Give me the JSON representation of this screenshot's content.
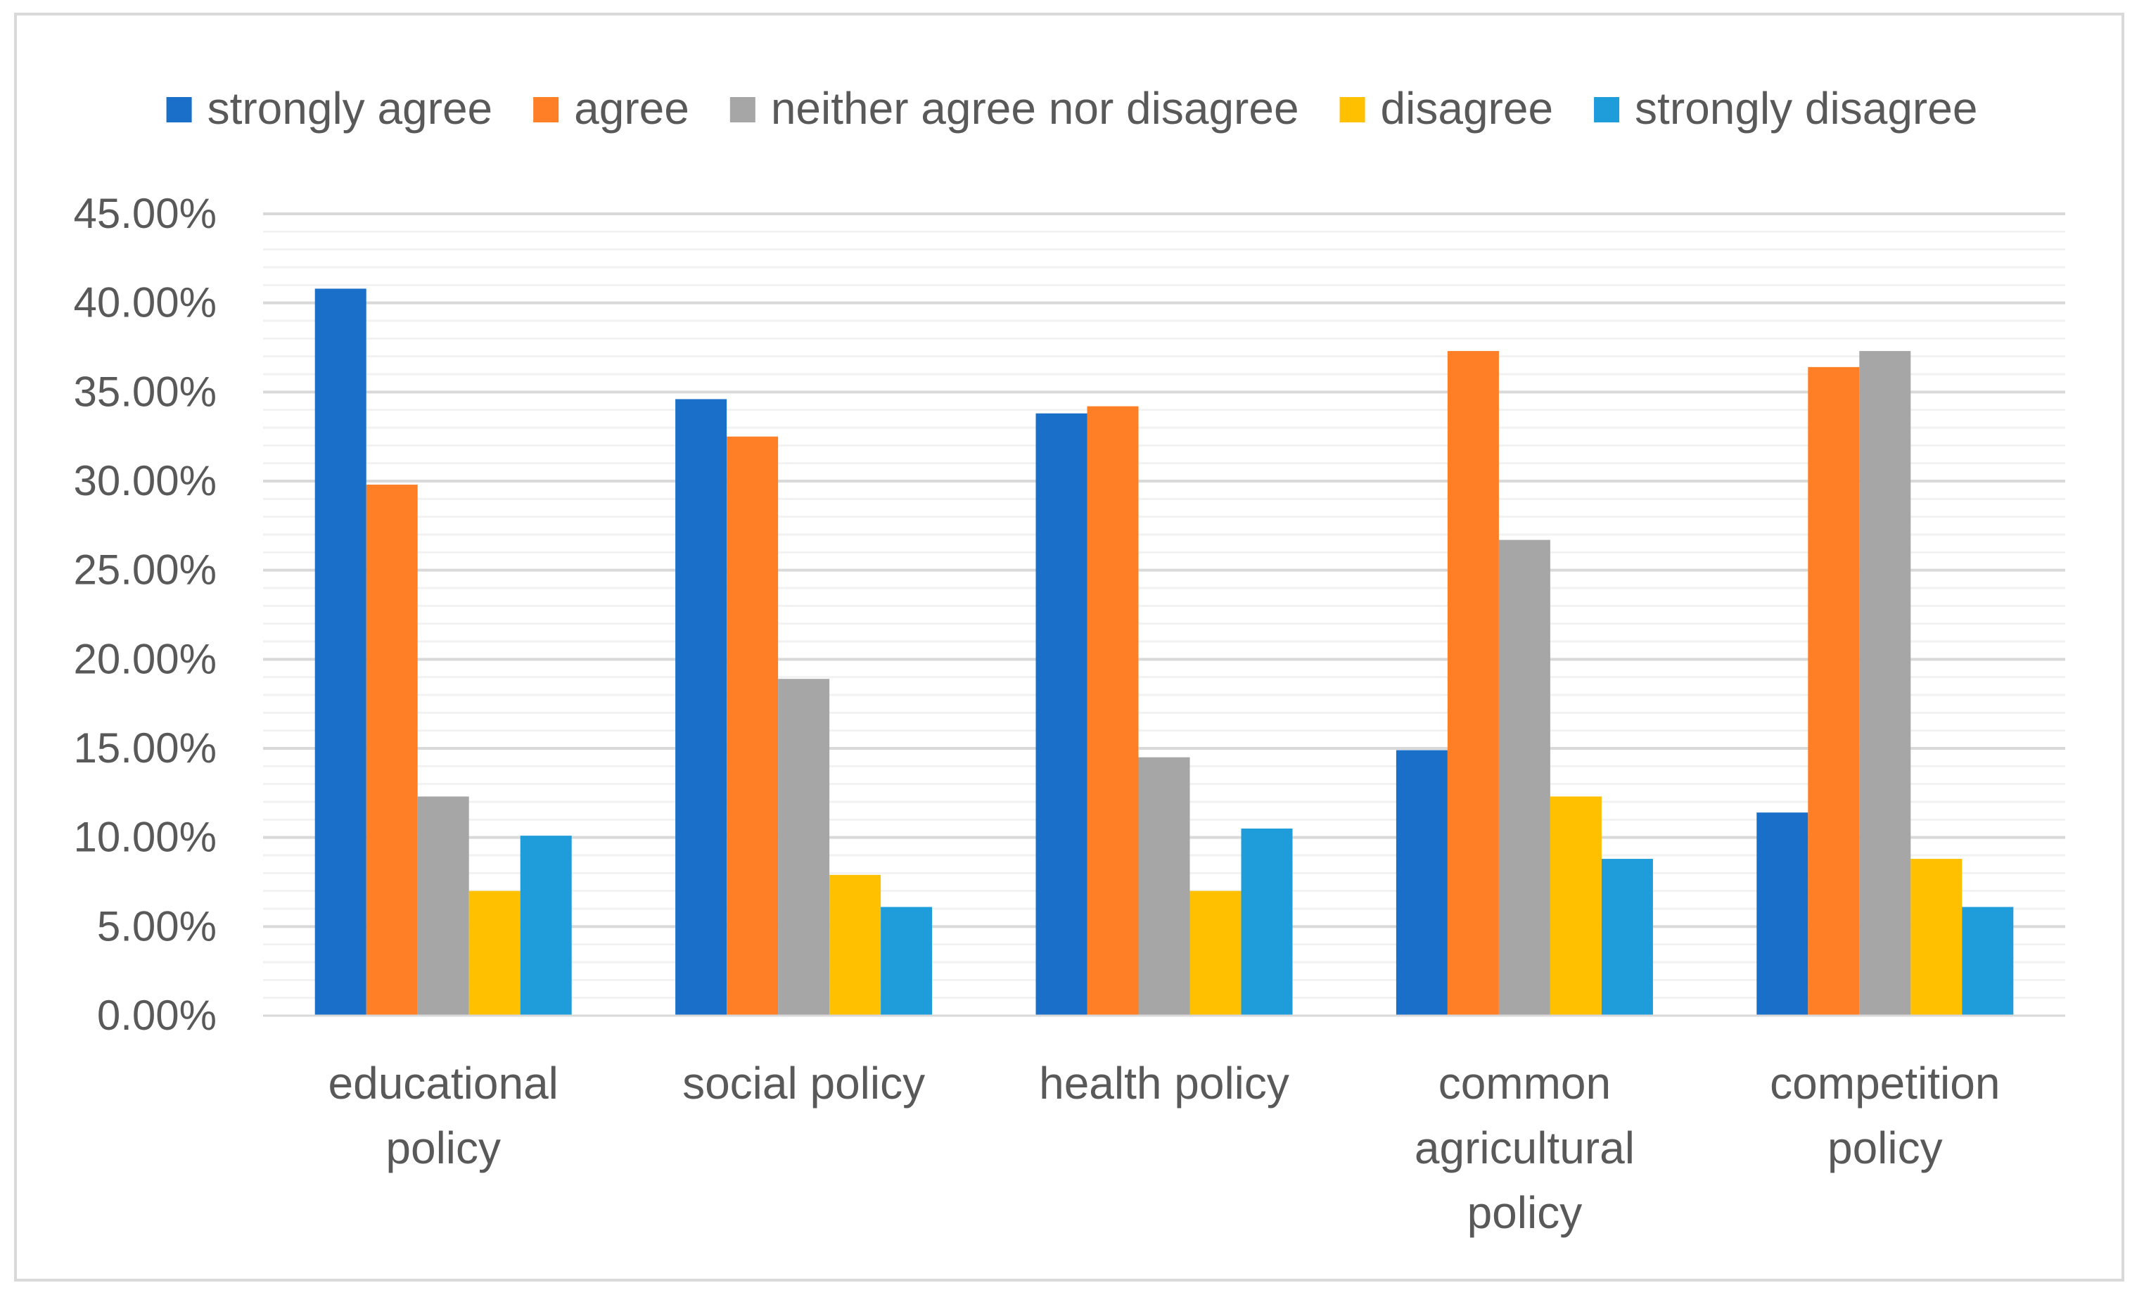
{
  "chart_data": {
    "type": "bar",
    "title": "",
    "xlabel": "",
    "ylabel": "",
    "ylim": [
      0,
      45
    ],
    "y_ticks": [
      0,
      5,
      10,
      15,
      20,
      25,
      30,
      35,
      40,
      45
    ],
    "y_tick_labels": [
      "0.00%",
      "5.00%",
      "10.00%",
      "15.00%",
      "20.00%",
      "25.00%",
      "30.00%",
      "35.00%",
      "40.00%",
      "45.00%"
    ],
    "minor_grid": true,
    "legend_position": "top",
    "categories": [
      [
        "educational",
        "policy"
      ],
      [
        "social policy"
      ],
      [
        "health policy"
      ],
      [
        "common",
        "agricultural",
        "policy"
      ],
      [
        "competition",
        "policy"
      ]
    ],
    "series": [
      {
        "name": "strongly agree",
        "color": "#1a70c8",
        "values": [
          40.8,
          34.6,
          33.8,
          14.9,
          11.4
        ]
      },
      {
        "name": "agree",
        "color": "#ff7f27",
        "values": [
          29.8,
          32.5,
          34.2,
          37.3,
          36.4
        ]
      },
      {
        "name": "neither agree nor disagree",
        "color": "#a6a6a6",
        "values": [
          12.3,
          18.9,
          14.5,
          26.7,
          37.3
        ]
      },
      {
        "name": "disagree",
        "color": "#ffc000",
        "values": [
          7.0,
          7.9,
          7.0,
          12.3,
          8.8
        ]
      },
      {
        "name": "strongly disagree",
        "color": "#1f9ddb",
        "values": [
          10.1,
          6.1,
          10.5,
          8.8,
          6.1
        ]
      }
    ]
  }
}
